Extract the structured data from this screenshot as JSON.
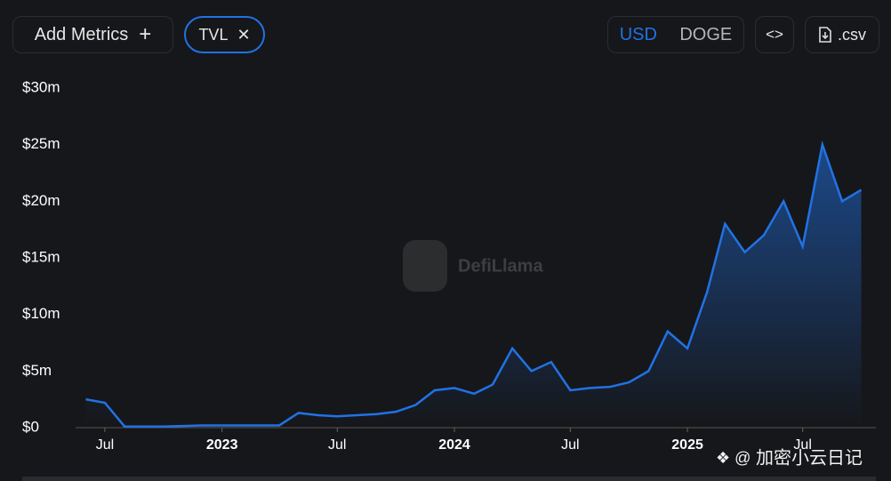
{
  "ui": {
    "add_metrics": "Add Metrics",
    "currency_usd": "USD",
    "currency_other": "DOGE",
    "embed": "<>",
    "csv": ".csv",
    "watermark": "DefiLlama",
    "source_watermark": "加密小云日记"
  },
  "chart_data": {
    "type": "area",
    "x": [
      "2022-06",
      "2022-07",
      "2022-08",
      "2022-09",
      "2022-10",
      "2022-11",
      "2022-12",
      "2023-01",
      "2023-02",
      "2023-03",
      "2023-04",
      "2023-05",
      "2023-06",
      "2023-07",
      "2023-08",
      "2023-09",
      "2023-10",
      "2023-11",
      "2023-12",
      "2024-01",
      "2024-02",
      "2024-03",
      "2024-04",
      "2024-05",
      "2024-06",
      "2024-07",
      "2024-08",
      "2024-09",
      "2024-10",
      "2024-11",
      "2024-12",
      "2025-01",
      "2025-02",
      "2025-03",
      "2025-04",
      "2025-05",
      "2025-06",
      "2025-07",
      "2025-08",
      "2025-09",
      "2025-10"
    ],
    "series": [
      {
        "name": "TVL",
        "color": "#2172e5",
        "values": [
          2.5,
          2.2,
          0.1,
          0.1,
          0.1,
          0.15,
          0.2,
          0.2,
          0.2,
          0.2,
          0.2,
          1.3,
          1.1,
          1.0,
          1.1,
          1.2,
          1.4,
          2.0,
          3.3,
          3.5,
          3.0,
          3.8,
          7.0,
          5.0,
          5.8,
          3.3,
          3.5,
          3.6,
          4.0,
          5.0,
          8.5,
          7.0,
          12,
          18,
          15.5,
          17,
          20,
          16,
          25,
          20,
          21
        ]
      }
    ],
    "xlim": [
      "2022-05-16",
      "2025-10-24"
    ],
    "xticks": [
      {
        "value": "2022-07",
        "label": "Jul"
      },
      {
        "value": "2023-01",
        "label": "2023"
      },
      {
        "value": "2023-07",
        "label": "Jul"
      },
      {
        "value": "2024-01",
        "label": "2024"
      },
      {
        "value": "2024-07",
        "label": "Jul"
      },
      {
        "value": "2025-01",
        "label": "2025"
      },
      {
        "value": "2025-07",
        "label": "Jul"
      }
    ],
    "ylim": [
      0,
      30
    ],
    "yticks": [
      {
        "value": 0,
        "label": "$0"
      },
      {
        "value": 5,
        "label": "$5m"
      },
      {
        "value": 10,
        "label": "$10m"
      },
      {
        "value": 15,
        "label": "$15m"
      },
      {
        "value": 20,
        "label": "$20m"
      },
      {
        "value": 25,
        "label": "$25m"
      },
      {
        "value": 30,
        "label": "$30m"
      }
    ],
    "grid": false
  }
}
